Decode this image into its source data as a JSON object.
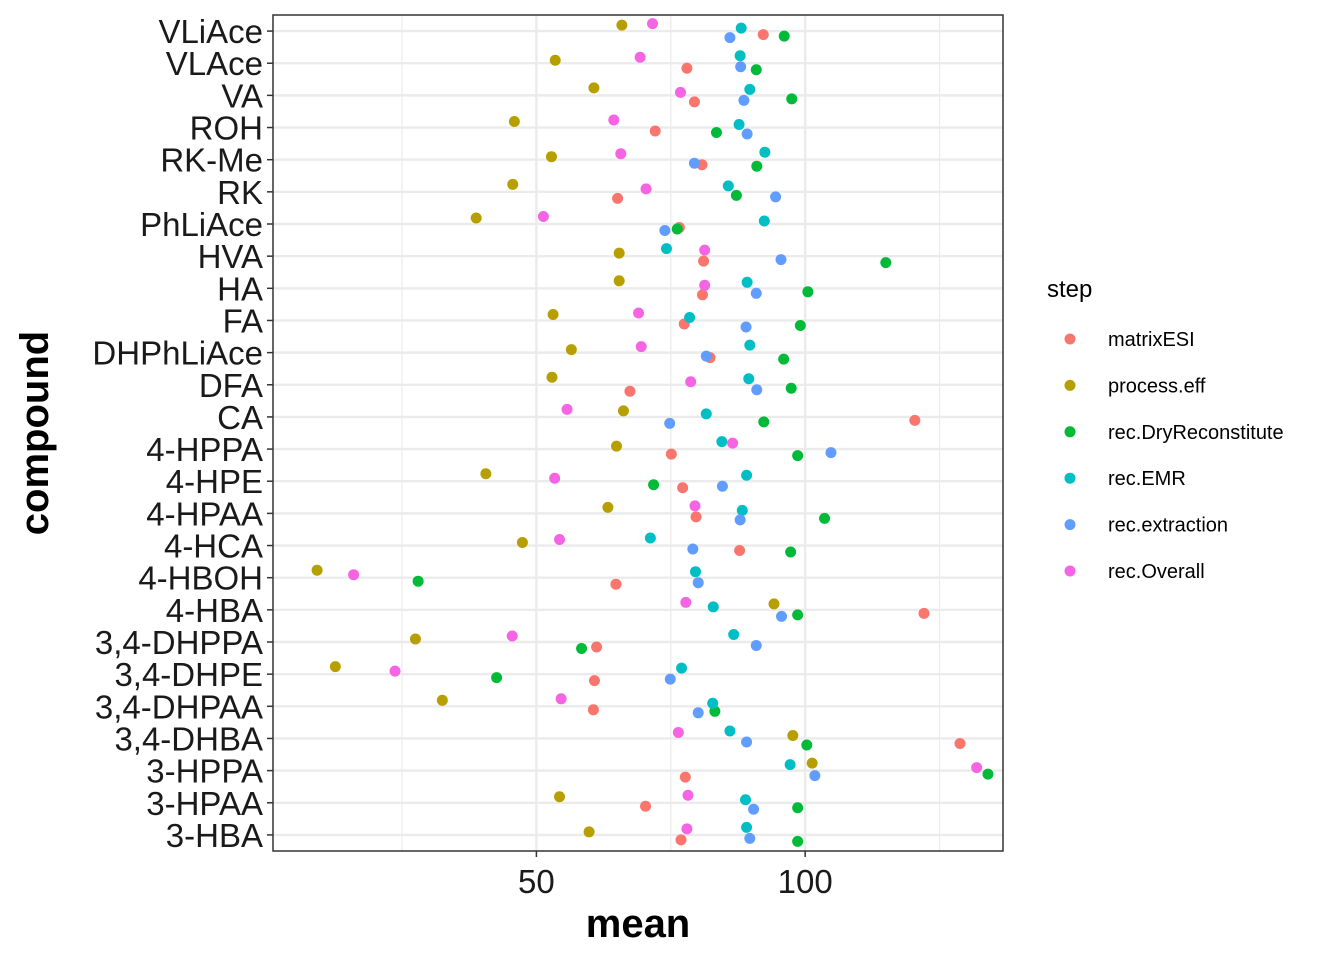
{
  "chart_data": {
    "type": "scatter",
    "xlabel": "mean",
    "ylabel": "compound",
    "xlim": [
      1,
      136.8
    ],
    "xticks": [
      50,
      100
    ],
    "grid": true,
    "legend": {
      "title": "step",
      "position": "right"
    },
    "categories": [
      "VLiAce",
      "VLAce",
      "VA",
      "ROH",
      "RK-Me",
      "RK",
      "PhLiAce",
      "HVA",
      "HA",
      "FA",
      "DHPhLiAce",
      "DFA",
      "CA",
      "4-HPPA",
      "4-HPE",
      "4-HPAA",
      "4-HCA",
      "4-HBOH",
      "4-HBA",
      "3,4-DHPPA",
      "3,4-DHPE",
      "3,4-DHPAA",
      "3,4-DHBA",
      "3-HPPA",
      "3-HPAA",
      "3-HBA"
    ],
    "series": [
      {
        "name": "matrixESI",
        "color": "#F8766D",
        "values": [
          92.2,
          78.0,
          79.4,
          72.1,
          80.8,
          65.1,
          76.6,
          81.1,
          80.9,
          77.5,
          82.3,
          67.4,
          120.4,
          75.1,
          77.2,
          79.7,
          87.8,
          64.8,
          122.1,
          61.2,
          60.8,
          60.6,
          128.8,
          77.7,
          70.3,
          76.9
        ]
      },
      {
        "name": "process.eff",
        "color": "#B79F00",
        "values": [
          65.9,
          53.5,
          60.7,
          45.9,
          52.8,
          45.6,
          38.8,
          65.4,
          65.4,
          53.1,
          56.5,
          52.9,
          66.2,
          64.9,
          40.6,
          63.3,
          47.4,
          9.2,
          94.2,
          27.5,
          12.6,
          32.5,
          97.7,
          101.3,
          54.3,
          59.8
        ]
      },
      {
        "name": "rec.DryReconstitute",
        "color": "#00BA38",
        "values": [
          96.1,
          90.9,
          97.5,
          83.5,
          91.0,
          87.2,
          76.2,
          115.0,
          100.5,
          99.1,
          96.0,
          97.4,
          92.3,
          98.6,
          71.8,
          103.6,
          97.3,
          28.0,
          98.6,
          58.4,
          42.6,
          83.2,
          100.3,
          134.0,
          98.6,
          98.6
        ]
      },
      {
        "name": "rec.EMR",
        "color": "#00BFC4",
        "values": [
          88.1,
          87.9,
          89.7,
          87.7,
          92.5,
          85.7,
          92.4,
          74.2,
          89.2,
          78.5,
          89.7,
          89.5,
          81.6,
          84.5,
          89.1,
          88.3,
          71.2,
          79.6,
          82.9,
          86.7,
          77.0,
          82.8,
          86.0,
          97.2,
          88.9,
          89.1
        ]
      },
      {
        "name": "rec.extraction",
        "color": "#619CFF",
        "values": [
          86.0,
          88.0,
          88.6,
          89.2,
          79.4,
          94.5,
          73.9,
          95.5,
          90.9,
          89.0,
          81.6,
          91.0,
          74.8,
          104.8,
          84.6,
          87.9,
          79.1,
          80.1,
          95.6,
          90.9,
          74.9,
          80.1,
          89.1,
          101.8,
          90.4,
          89.7
        ]
      },
      {
        "name": "rec.Overall",
        "color": "#F564E3",
        "values": [
          71.6,
          69.3,
          76.8,
          64.4,
          65.7,
          70.4,
          51.3,
          81.3,
          81.3,
          69.0,
          69.5,
          78.7,
          55.7,
          86.5,
          53.4,
          79.5,
          54.3,
          16.0,
          77.8,
          45.5,
          23.7,
          54.6,
          76.4,
          131.9,
          78.2,
          78.0
        ]
      }
    ]
  }
}
